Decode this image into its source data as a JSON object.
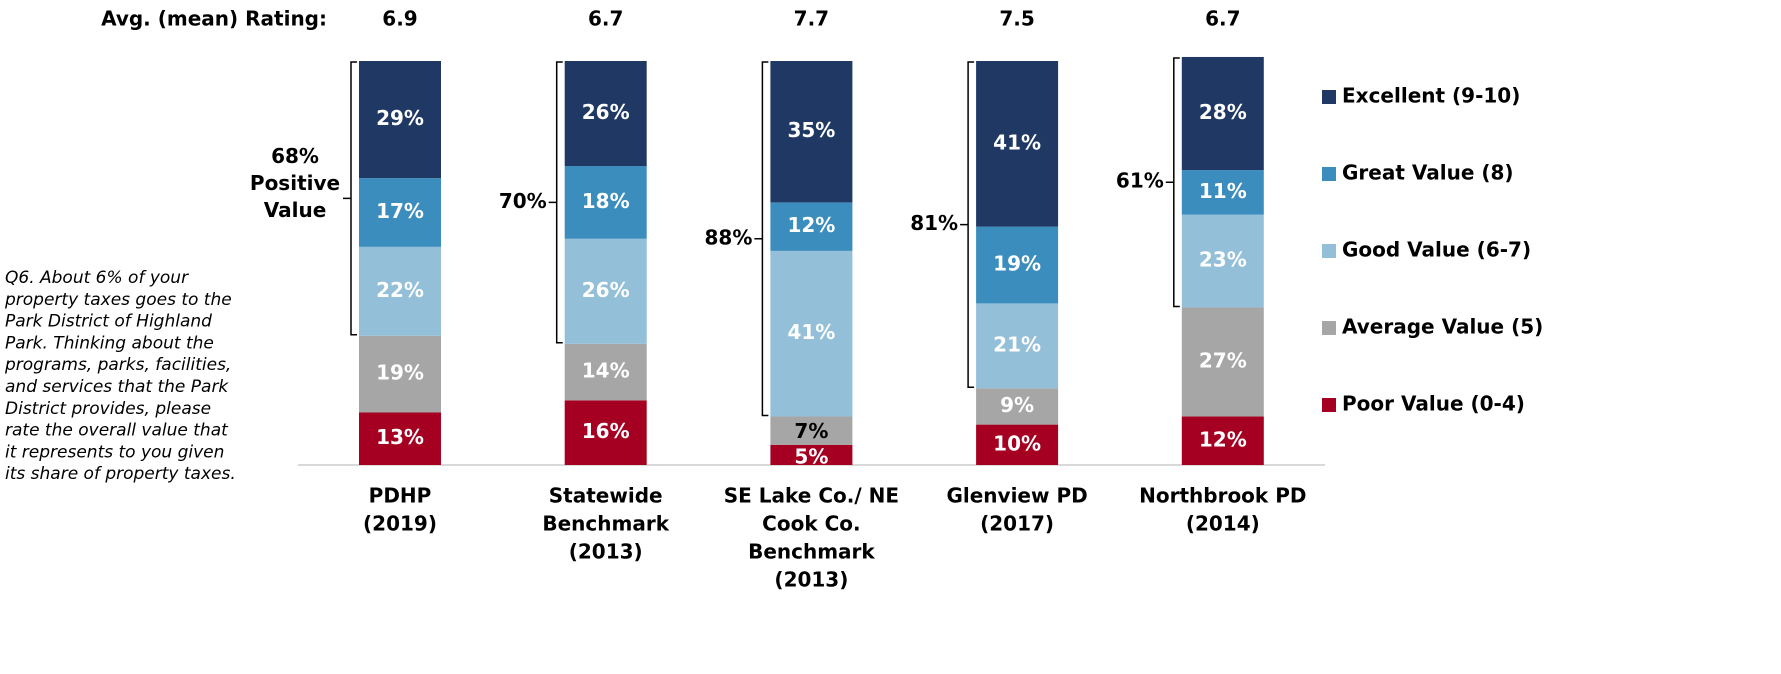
{
  "chart_data": {
    "type": "stacked_bar",
    "avg_label": "Avg. (mean) Rating:",
    "avg_values": [
      6.9,
      6.7,
      7.7,
      7.5,
      6.7
    ],
    "categories": [
      [
        "PDHP",
        "(2019)"
      ],
      [
        "Statewide",
        "Benchmark",
        "(2013)"
      ],
      [
        "SE Lake Co./ NE",
        "Cook Co.",
        "Benchmark",
        "(2013)"
      ],
      [
        "Glenview PD",
        "(2017)"
      ],
      [
        "Northbrook PD",
        "(2014)"
      ]
    ],
    "series": [
      {
        "name": "Poor Value (0-4)",
        "color": "#a50021",
        "values": [
          13,
          16,
          5,
          10,
          12
        ],
        "value_labels": [
          "13%",
          "16%",
          "5%",
          "10%",
          "12%"
        ]
      },
      {
        "name": "Average Value (5)",
        "color": "#a6a6a6",
        "values": [
          19,
          14,
          7,
          9,
          27
        ],
        "value_labels": [
          "19%",
          "14%",
          "7%",
          "9%",
          "27%"
        ]
      },
      {
        "name": "Good Value (6-7)",
        "color": "#93bfd9",
        "values": [
          22,
          26,
          41,
          21,
          23
        ],
        "value_labels": [
          "22%",
          "26%",
          "41%",
          "21%",
          "23%"
        ]
      },
      {
        "name": "Great Value (8)",
        "color": "#3b8dbd",
        "values": [
          17,
          18,
          12,
          19,
          11
        ],
        "value_labels": [
          "17%",
          "18%",
          "12%",
          "19%",
          "11%"
        ]
      },
      {
        "name": "Excellent (9-10)",
        "color": "#1f3864",
        "values": [
          29,
          26,
          35,
          41,
          28
        ],
        "value_labels": [
          "29%",
          "26%",
          "35%",
          "41%",
          "28%"
        ]
      }
    ],
    "positive": {
      "values": [
        68,
        70,
        88,
        81,
        61
      ],
      "value_labels": [
        "68%",
        "70%",
        "88%",
        "81%",
        "61%"
      ],
      "caption": [
        "Positive",
        "Value"
      ]
    },
    "question": [
      "Q6. About 6% of your",
      "property taxes goes to the",
      "Park District of Highland",
      "Park.  Thinking about the",
      "programs, parks, facilities,",
      "and services that the Park",
      "District provides, please",
      "rate the overall value that",
      "it represents to you given",
      "its share of property taxes."
    ]
  }
}
